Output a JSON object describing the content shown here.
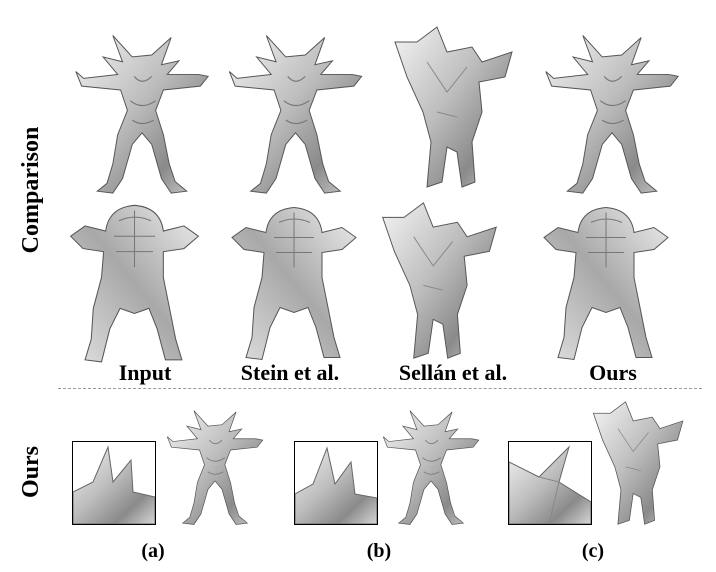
{
  "figure": {
    "row_labels": {
      "top": "Comparison",
      "bottom": "Ours"
    },
    "columns": [
      {
        "label": "Input"
      },
      {
        "label": "Stein et al."
      },
      {
        "label": "Sellán et al."
      },
      {
        "label": "Ours"
      }
    ],
    "subfigures": [
      {
        "label": "(a)"
      },
      {
        "label": "(b)"
      },
      {
        "label": "(c)"
      }
    ],
    "colors": {
      "metal_light": "#e8e8e8",
      "metal_mid": "#b9b9b9",
      "metal_dark": "#6e6e6e"
    }
  }
}
